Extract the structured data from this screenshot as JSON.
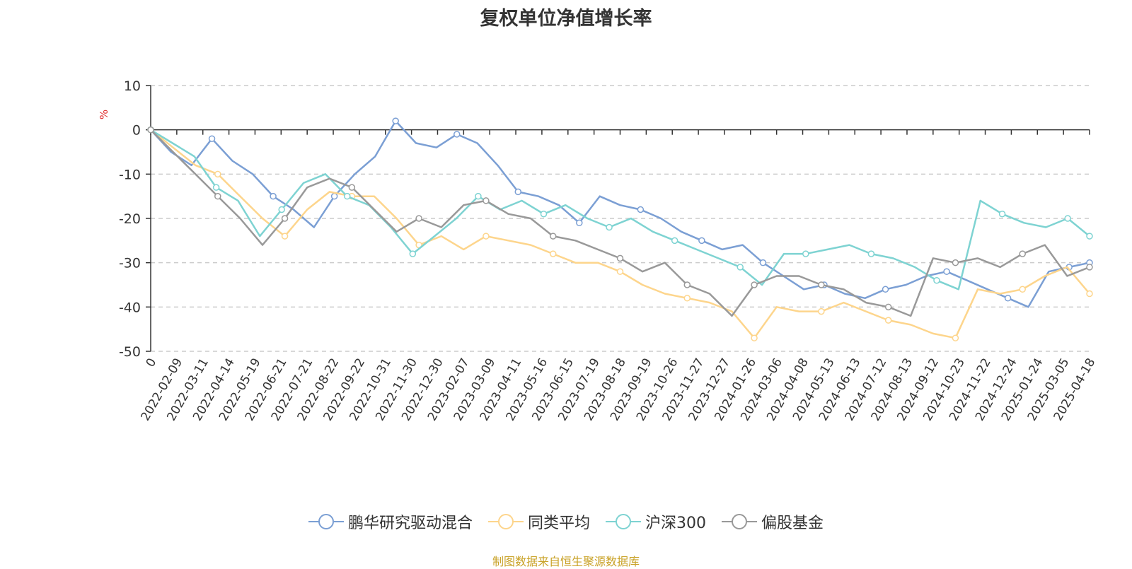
{
  "chart_data": {
    "type": "line",
    "title": "复权单位净值增长率",
    "ylabel": "%",
    "ylim": [
      -50,
      10
    ],
    "yticks": [
      "10",
      "0",
      "-10",
      "-20",
      "-30",
      "-40",
      "-50"
    ],
    "grid": true,
    "legend_position": "bottom",
    "x_ticks": [
      "0",
      "2022-02-09",
      "2022-03-11",
      "2022-04-14",
      "2022-05-19",
      "2022-06-21",
      "2022-07-21",
      "2022-08-22",
      "2022-09-22",
      "2022-10-31",
      "2022-11-30",
      "2022-12-30",
      "2023-02-07",
      "2023-03-09",
      "2023-04-11",
      "2023-05-16",
      "2023-06-15",
      "2023-07-19",
      "2023-08-18",
      "2023-09-19",
      "2023-10-26",
      "2023-11-27",
      "2023-12-27",
      "2024-01-26",
      "2024-03-06",
      "2024-04-08",
      "2024-05-13",
      "2024-06-13",
      "2024-07-12",
      "2024-08-13",
      "2024-09-12",
      "2024-10-23",
      "2024-11-22",
      "2024-12-24",
      "2025-01-24",
      "2025-03-05",
      "2025-04-18"
    ],
    "series": [
      {
        "name": "鹏华研究驱动混合",
        "color": "#7b9fd4",
        "values": [
          0,
          -5,
          -8,
          -2,
          -7,
          -10,
          -15,
          -18,
          -22,
          -15,
          -10,
          -6,
          2,
          -3,
          -4,
          -1,
          -3,
          -8,
          -14,
          -15,
          -17,
          -21,
          -15,
          -17,
          -18,
          -20,
          -23,
          -25,
          -27,
          -26,
          -30,
          -33,
          -36,
          -35,
          -37,
          -38,
          -36,
          -35,
          -33,
          -32,
          -34,
          -36,
          -38,
          -40,
          -32,
          -31,
          -30
        ]
      },
      {
        "name": "同类平均",
        "color": "#fdd58c",
        "values": [
          0,
          -4,
          -8,
          -10,
          -15,
          -20,
          -24,
          -18,
          -14,
          -15,
          -15,
          -20,
          -26,
          -24,
          -27,
          -24,
          -25,
          -26,
          -28,
          -30,
          -30,
          -32,
          -35,
          -37,
          -38,
          -39,
          -41,
          -47,
          -40,
          -41,
          -41,
          -39,
          -41,
          -43,
          -44,
          -46,
          -47,
          -36,
          -37,
          -36,
          -33,
          -31,
          -37
        ]
      },
      {
        "name": "沪深300",
        "color": "#7ed3d2",
        "values": [
          0,
          -3,
          -6,
          -13,
          -16,
          -24,
          -18,
          -12,
          -10,
          -15,
          -17,
          -22,
          -28,
          -24,
          -20,
          -15,
          -18,
          -16,
          -19,
          -17,
          -20,
          -22,
          -20,
          -23,
          -25,
          -27,
          -29,
          -31,
          -35,
          -28,
          -28,
          -27,
          -26,
          -28,
          -29,
          -31,
          -34,
          -36,
          -16,
          -19,
          -21,
          -22,
          -20,
          -24
        ]
      },
      {
        "name": "偏股基金",
        "color": "#999999",
        "values": [
          0,
          -5,
          -10,
          -15,
          -20,
          -26,
          -20,
          -13,
          -11,
          -13,
          -18,
          -23,
          -20,
          -22,
          -17,
          -16,
          -19,
          -20,
          -24,
          -25,
          -27,
          -29,
          -32,
          -30,
          -35,
          -37,
          -42,
          -35,
          -33,
          -33,
          -35,
          -36,
          -39,
          -40,
          -42,
          -29,
          -30,
          -29,
          -31,
          -28,
          -26,
          -33,
          -31
        ]
      }
    ]
  },
  "legend": {
    "items": [
      "鹏华研究驱动混合",
      "同类平均",
      "沪深300",
      "偏股基金"
    ]
  },
  "source_note": "制图数据来自恒生聚源数据库"
}
